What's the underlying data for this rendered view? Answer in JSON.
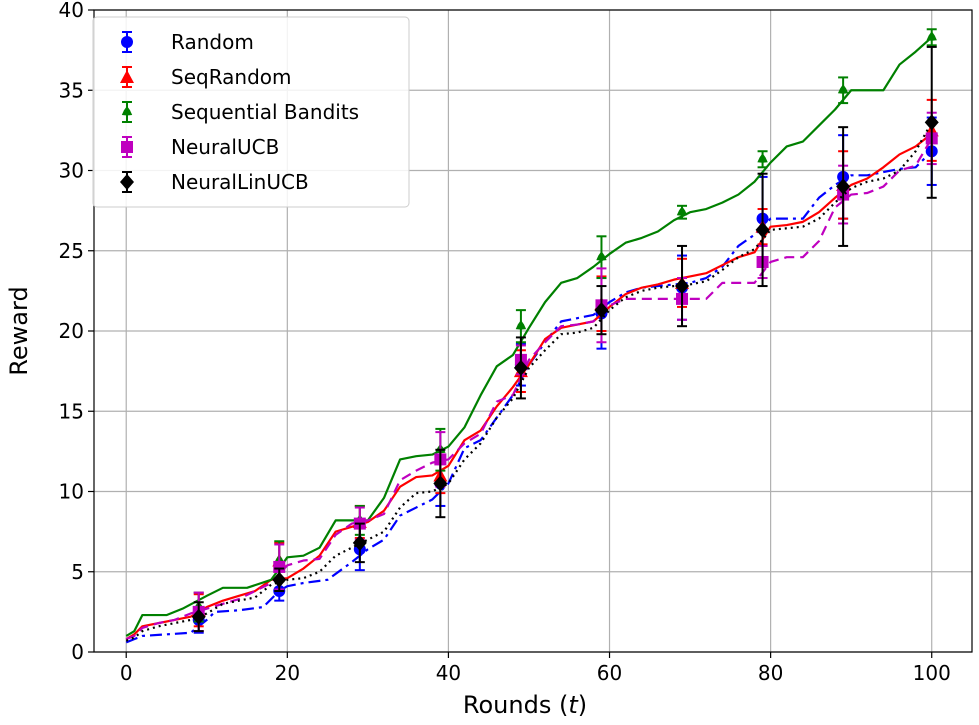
{
  "chart_data": {
    "type": "line",
    "xlabel": "Rounds (",
    "xlabel_var": "t",
    "xlabel_close": ")",
    "ylabel": "Reward",
    "xlim": [
      -4,
      105
    ],
    "ylim": [
      0,
      40
    ],
    "xticks": [
      0,
      20,
      40,
      60,
      80,
      100
    ],
    "yticks": [
      0,
      5,
      10,
      15,
      20,
      25,
      30,
      35,
      40
    ],
    "xtick_labels": [
      "0",
      "20",
      "40",
      "60",
      "80",
      "100"
    ],
    "ytick_labels": [
      "0",
      "5",
      "10",
      "15",
      "20",
      "25",
      "30",
      "35",
      "40"
    ],
    "grid": true,
    "legend_position": "top-left",
    "series": [
      {
        "name": "Random",
        "color": "#0000ff",
        "dash": "12 5 3 5",
        "marker": "circle",
        "line_x": [
          0,
          1,
          2,
          5,
          8,
          10,
          11,
          14,
          17,
          19,
          20,
          22,
          25,
          28,
          30,
          32,
          34,
          36,
          38,
          40,
          42,
          44,
          46,
          48,
          50,
          52,
          54,
          56,
          58,
          60,
          62,
          64,
          66,
          68,
          70,
          72,
          74,
          76,
          78,
          80,
          82,
          84,
          86,
          88,
          90,
          92,
          94,
          96,
          98,
          100
        ],
        "line_y": [
          0.6,
          0.8,
          1.0,
          1.1,
          1.2,
          2.0,
          2.5,
          2.6,
          2.8,
          3.8,
          4.1,
          4.3,
          4.5,
          5.6,
          6.4,
          7.0,
          8.5,
          9.0,
          9.5,
          10.5,
          12.7,
          13.2,
          14.6,
          16.0,
          17.9,
          19.3,
          20.6,
          20.8,
          21.0,
          21.8,
          22.4,
          22.7,
          22.8,
          22.9,
          23.0,
          23.3,
          24.0,
          25.3,
          26.0,
          27.0,
          27.0,
          27.0,
          28.3,
          29.1,
          29.7,
          29.7,
          29.9,
          30.1,
          30.2,
          31.2
        ],
        "points_x": [
          9,
          19,
          29,
          39,
          49,
          59,
          69,
          79,
          89,
          100
        ],
        "points_y": [
          2.0,
          3.8,
          6.4,
          10.5,
          17.9,
          21.1,
          22.7,
          27.0,
          29.6,
          31.2
        ],
        "err": [
          0.8,
          0.6,
          1.3,
          1.4,
          1.3,
          2.2,
          2.0,
          2.6,
          2.6,
          2.1
        ]
      },
      {
        "name": "SeqRandom",
        "color": "#ff0000",
        "dash": "",
        "marker": "triangle",
        "line_x": [
          0,
          1,
          2,
          4,
          6,
          8,
          10,
          12,
          14,
          16,
          18,
          20,
          22,
          24,
          26,
          28,
          30,
          32,
          34,
          36,
          38,
          40,
          42,
          44,
          46,
          48,
          50,
          52,
          54,
          56,
          58,
          60,
          62,
          64,
          66,
          68,
          70,
          72,
          74,
          76,
          78,
          80,
          82,
          84,
          86,
          88,
          90,
          92,
          94,
          96,
          98,
          100
        ],
        "line_y": [
          0.8,
          1.1,
          1.6,
          1.8,
          2.0,
          2.2,
          2.8,
          3.2,
          3.5,
          3.8,
          4.5,
          4.6,
          5.2,
          6.0,
          7.5,
          7.8,
          8.1,
          8.8,
          10.3,
          10.9,
          11.0,
          11.6,
          13.2,
          13.8,
          15.3,
          16.5,
          17.9,
          19.5,
          20.2,
          20.4,
          20.6,
          21.5,
          22.3,
          22.7,
          22.9,
          23.2,
          23.4,
          23.6,
          24.1,
          24.6,
          24.9,
          26.5,
          26.6,
          26.8,
          27.4,
          28.3,
          29.1,
          29.5,
          30.2,
          31.0,
          31.5,
          32.3
        ],
        "points_x": [
          9,
          19,
          29,
          39,
          49,
          59,
          69,
          79,
          89,
          100
        ],
        "points_y": [
          2.6,
          5.7,
          8.1,
          11.0,
          17.5,
          21.7,
          23.0,
          26.5,
          29.1,
          32.5
        ],
        "err": [
          1.0,
          1.1,
          1.0,
          1.1,
          1.3,
          1.7,
          1.5,
          1.1,
          2.1,
          1.9
        ]
      },
      {
        "name": "Sequential Bandits",
        "color": "#008000",
        "dash": "",
        "marker": "star",
        "line_x": [
          0,
          1,
          2,
          5,
          7,
          10,
          12,
          15,
          18,
          20,
          22,
          24,
          26,
          28,
          30,
          32,
          34,
          36,
          38,
          40,
          42,
          44,
          46,
          48,
          50,
          52,
          54,
          56,
          58,
          60,
          62,
          64,
          66,
          68,
          70,
          72,
          74,
          76,
          78,
          80,
          82,
          84,
          86,
          88,
          90,
          92,
          94,
          96,
          98,
          100
        ],
        "line_y": [
          1.0,
          1.3,
          2.3,
          2.3,
          2.7,
          3.5,
          4.0,
          4.0,
          4.5,
          5.9,
          6.0,
          6.5,
          8.2,
          8.2,
          8.2,
          9.6,
          12.0,
          12.2,
          12.3,
          12.8,
          14.0,
          16.0,
          17.8,
          18.5,
          20.2,
          21.8,
          23.0,
          23.3,
          24.0,
          24.8,
          25.5,
          25.8,
          26.2,
          26.9,
          27.4,
          27.6,
          28.0,
          28.5,
          29.3,
          30.5,
          31.5,
          31.8,
          32.8,
          33.8,
          35.0,
          35.0,
          35.0,
          36.6,
          37.4,
          38.3
        ],
        "points_x": [
          9,
          19,
          29,
          39,
          49,
          59,
          69,
          79,
          89,
          100
        ],
        "points_y": [
          2.8,
          5.7,
          8.2,
          12.6,
          20.3,
          24.6,
          27.4,
          30.7,
          35.0,
          38.3
        ],
        "err": [
          0.9,
          1.2,
          0.9,
          1.3,
          1.0,
          1.3,
          0.4,
          0.5,
          0.8,
          0.5
        ]
      },
      {
        "name": "NeuralUCB",
        "color": "#bf00bf",
        "dash": "10 6",
        "marker": "square",
        "line_x": [
          0,
          1,
          2,
          4,
          6,
          8,
          10,
          12,
          14,
          16,
          18,
          20,
          22,
          24,
          26,
          28,
          30,
          32,
          34,
          36,
          38,
          40,
          42,
          44,
          46,
          48,
          50,
          52,
          54,
          56,
          58,
          60,
          62,
          64,
          66,
          68,
          70,
          72,
          74,
          76,
          78,
          80,
          82,
          84,
          86,
          88,
          90,
          92,
          94,
          96,
          98,
          100
        ],
        "line_y": [
          0.8,
          1.0,
          1.5,
          1.8,
          2.0,
          2.4,
          2.7,
          3.0,
          3.3,
          3.8,
          4.3,
          5.4,
          5.7,
          5.8,
          7.3,
          8.0,
          8.2,
          8.6,
          10.7,
          11.3,
          11.8,
          12.0,
          13.0,
          13.6,
          15.6,
          16.0,
          18.2,
          19.3,
          20.3,
          20.4,
          20.6,
          21.6,
          22.0,
          22.0,
          22.0,
          22.0,
          22.0,
          22.0,
          23.0,
          23.0,
          23.0,
          24.3,
          24.6,
          24.6,
          25.6,
          27.7,
          28.5,
          28.6,
          29.0,
          30.0,
          30.3,
          32.0
        ],
        "points_x": [
          9,
          19,
          29,
          39,
          49,
          59,
          69,
          79,
          89,
          100
        ],
        "points_y": [
          2.5,
          5.3,
          8.0,
          12.0,
          18.2,
          21.6,
          22.0,
          24.3,
          28.5,
          32.0
        ],
        "err": [
          1.2,
          1.4,
          1.0,
          1.7,
          0.9,
          2.3,
          1.3,
          1.0,
          1.8,
          1.6
        ]
      },
      {
        "name": "NeuralLinUCB",
        "color": "#000000",
        "dash": "2 4",
        "marker": "diamond",
        "line_x": [
          0,
          1,
          2,
          4,
          6,
          8,
          10,
          12,
          14,
          16,
          18,
          20,
          22,
          24,
          26,
          28,
          30,
          32,
          34,
          36,
          38,
          40,
          42,
          44,
          46,
          48,
          50,
          52,
          54,
          56,
          58,
          60,
          62,
          64,
          66,
          68,
          70,
          72,
          74,
          76,
          78,
          80,
          82,
          84,
          86,
          88,
          90,
          92,
          94,
          96,
          98,
          100
        ],
        "line_y": [
          0.7,
          0.9,
          1.3,
          1.6,
          1.8,
          2.0,
          2.4,
          3.0,
          3.2,
          3.4,
          4.2,
          4.5,
          4.6,
          5.0,
          6.0,
          6.5,
          7.0,
          7.5,
          9.0,
          9.9,
          10.0,
          10.5,
          12.0,
          13.0,
          14.6,
          15.8,
          17.7,
          18.8,
          19.8,
          19.9,
          20.2,
          21.3,
          22.1,
          22.5,
          22.7,
          22.8,
          22.9,
          23.1,
          23.8,
          24.6,
          25.1,
          26.3,
          26.4,
          26.5,
          27.0,
          28.0,
          28.9,
          29.3,
          29.5,
          30.0,
          31.2,
          33.0
        ],
        "points_x": [
          9,
          19,
          29,
          39,
          49,
          59,
          69,
          79,
          89,
          100
        ],
        "points_y": [
          2.2,
          4.5,
          6.8,
          10.5,
          17.7,
          21.3,
          22.8,
          26.3,
          29.0,
          33.0
        ],
        "err": [
          0.9,
          0.7,
          1.2,
          2.1,
          1.9,
          1.5,
          2.5,
          3.5,
          3.7,
          4.7
        ]
      }
    ]
  }
}
